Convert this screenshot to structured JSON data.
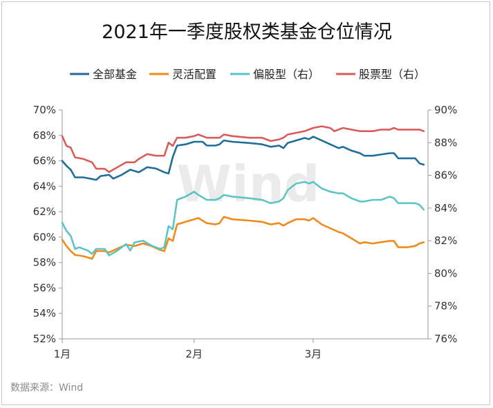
{
  "chart_data": {
    "type": "line",
    "title": "2021年一季度股权类基金仓位情况",
    "source": "数据来源：Wind",
    "watermark": "Wind",
    "x_ticks": [
      "1月",
      "2月",
      "3月"
    ],
    "y_left": {
      "ylim": [
        52,
        70
      ],
      "ticks": [
        "52%",
        "54%",
        "56%",
        "58%",
        "60%",
        "62%",
        "64%",
        "66%",
        "68%",
        "70%"
      ]
    },
    "y_right": {
      "ylim": [
        76,
        90
      ],
      "ticks": [
        "76%",
        "78%",
        "80%",
        "82%",
        "84%",
        "86%",
        "88%",
        "90%"
      ]
    },
    "legend_position": "top",
    "grid": false,
    "x_day_start": 1,
    "x_day_end": 87,
    "series": [
      {
        "name": "全部基金",
        "axis": "left",
        "color": "#1f6e9a",
        "points": [
          [
            1,
            66.0
          ],
          [
            2,
            65.6
          ],
          [
            3,
            65.3
          ],
          [
            4,
            64.7
          ],
          [
            6,
            64.7
          ],
          [
            9,
            64.5
          ],
          [
            10,
            64.8
          ],
          [
            12,
            64.9
          ],
          [
            13,
            64.6
          ],
          [
            15,
            64.9
          ],
          [
            17,
            65.3
          ],
          [
            19,
            65.1
          ],
          [
            21,
            65.5
          ],
          [
            23,
            65.4
          ],
          [
            25,
            65.1
          ],
          [
            26,
            65.0
          ],
          [
            27,
            66.3
          ],
          [
            28,
            67.2
          ],
          [
            30,
            67.3
          ],
          [
            32,
            67.5
          ],
          [
            34,
            67.5
          ],
          [
            35,
            67.2
          ],
          [
            37,
            67.2
          ],
          [
            38,
            67.3
          ],
          [
            39,
            67.6
          ],
          [
            41,
            67.5
          ],
          [
            45,
            67.4
          ],
          [
            48,
            67.3
          ],
          [
            50,
            67.1
          ],
          [
            52,
            67.2
          ],
          [
            53,
            67.0
          ],
          [
            54,
            67.4
          ],
          [
            56,
            67.6
          ],
          [
            58,
            67.8
          ],
          [
            59,
            67.7
          ],
          [
            60,
            67.9
          ],
          [
            62,
            67.6
          ],
          [
            64,
            67.3
          ],
          [
            66,
            67.0
          ],
          [
            67,
            67.1
          ],
          [
            69,
            66.8
          ],
          [
            71,
            66.6
          ],
          [
            72,
            66.4
          ],
          [
            74,
            66.4
          ],
          [
            76,
            66.5
          ],
          [
            78,
            66.6
          ],
          [
            79,
            66.6
          ],
          [
            80,
            66.2
          ],
          [
            82,
            66.2
          ],
          [
            84,
            66.2
          ],
          [
            85,
            65.8
          ],
          [
            86,
            65.7
          ]
        ]
      },
      {
        "name": "灵活配置",
        "axis": "left",
        "color": "#ef8a1a",
        "points": [
          [
            1,
            59.8
          ],
          [
            2,
            59.3
          ],
          [
            3,
            58.9
          ],
          [
            4,
            58.6
          ],
          [
            6,
            58.5
          ],
          [
            8,
            58.3
          ],
          [
            9,
            58.9
          ],
          [
            11,
            58.9
          ],
          [
            12,
            58.8
          ],
          [
            14,
            59.1
          ],
          [
            16,
            59.4
          ],
          [
            18,
            59.3
          ],
          [
            20,
            59.5
          ],
          [
            22,
            59.3
          ],
          [
            24,
            59.0
          ],
          [
            25,
            58.9
          ],
          [
            26,
            59.9
          ],
          [
            27,
            59.7
          ],
          [
            28,
            61.0
          ],
          [
            30,
            61.2
          ],
          [
            32,
            61.4
          ],
          [
            33,
            61.5
          ],
          [
            35,
            61.1
          ],
          [
            37,
            61.0
          ],
          [
            38,
            61.1
          ],
          [
            39,
            61.6
          ],
          [
            41,
            61.4
          ],
          [
            45,
            61.3
          ],
          [
            48,
            61.2
          ],
          [
            50,
            61.0
          ],
          [
            52,
            61.1
          ],
          [
            53,
            60.9
          ],
          [
            54,
            61.1
          ],
          [
            56,
            61.4
          ],
          [
            58,
            61.4
          ],
          [
            59,
            61.3
          ],
          [
            60,
            61.5
          ],
          [
            62,
            61.0
          ],
          [
            64,
            60.7
          ],
          [
            66,
            60.4
          ],
          [
            67,
            60.3
          ],
          [
            69,
            59.9
          ],
          [
            71,
            59.5
          ],
          [
            72,
            59.6
          ],
          [
            74,
            59.5
          ],
          [
            76,
            59.6
          ],
          [
            78,
            59.7
          ],
          [
            79,
            59.7
          ],
          [
            80,
            59.2
          ],
          [
            82,
            59.2
          ],
          [
            84,
            59.3
          ],
          [
            85,
            59.5
          ],
          [
            86,
            59.6
          ]
        ]
      },
      {
        "name": "偏股型（右）",
        "axis": "right",
        "color": "#5cc4c4",
        "points": [
          [
            1,
            83.1
          ],
          [
            2,
            82.6
          ],
          [
            3,
            82.3
          ],
          [
            4,
            81.5
          ],
          [
            5,
            81.6
          ],
          [
            7,
            81.4
          ],
          [
            8,
            81.2
          ],
          [
            9,
            81.5
          ],
          [
            11,
            81.5
          ],
          [
            12,
            81.1
          ],
          [
            14,
            81.4
          ],
          [
            16,
            81.8
          ],
          [
            17,
            81.4
          ],
          [
            18,
            81.9
          ],
          [
            20,
            82.0
          ],
          [
            22,
            81.7
          ],
          [
            24,
            81.5
          ],
          [
            25,
            81.6
          ],
          [
            26,
            82.9
          ],
          [
            27,
            82.7
          ],
          [
            28,
            84.5
          ],
          [
            30,
            84.7
          ],
          [
            32,
            85.0
          ],
          [
            33,
            84.8
          ],
          [
            35,
            84.5
          ],
          [
            37,
            84.5
          ],
          [
            38,
            84.6
          ],
          [
            39,
            84.8
          ],
          [
            41,
            84.7
          ],
          [
            45,
            84.6
          ],
          [
            48,
            84.5
          ],
          [
            50,
            84.3
          ],
          [
            52,
            84.4
          ],
          [
            53,
            84.6
          ],
          [
            54,
            85.1
          ],
          [
            56,
            85.5
          ],
          [
            58,
            85.6
          ],
          [
            59,
            85.5
          ],
          [
            60,
            85.6
          ],
          [
            62,
            85.2
          ],
          [
            64,
            85.0
          ],
          [
            66,
            84.9
          ],
          [
            67,
            84.9
          ],
          [
            69,
            84.6
          ],
          [
            71,
            84.4
          ],
          [
            72,
            84.4
          ],
          [
            74,
            84.5
          ],
          [
            76,
            84.5
          ],
          [
            78,
            84.7
          ],
          [
            79,
            84.6
          ],
          [
            80,
            84.3
          ],
          [
            82,
            84.3
          ],
          [
            84,
            84.3
          ],
          [
            85,
            84.2
          ],
          [
            86,
            83.9
          ]
        ]
      },
      {
        "name": "股票型（右）",
        "axis": "right",
        "color": "#d95b5b",
        "points": [
          [
            1,
            88.4
          ],
          [
            2,
            87.8
          ],
          [
            3,
            87.7
          ],
          [
            4,
            87.1
          ],
          [
            6,
            87.0
          ],
          [
            8,
            86.8
          ],
          [
            9,
            86.4
          ],
          [
            11,
            86.4
          ],
          [
            12,
            86.2
          ],
          [
            14,
            86.5
          ],
          [
            16,
            86.8
          ],
          [
            18,
            86.8
          ],
          [
            19,
            87.0
          ],
          [
            21,
            87.3
          ],
          [
            23,
            87.2
          ],
          [
            25,
            87.2
          ],
          [
            26,
            88.0
          ],
          [
            27,
            87.8
          ],
          [
            28,
            88.3
          ],
          [
            30,
            88.3
          ],
          [
            32,
            88.4
          ],
          [
            33,
            88.5
          ],
          [
            35,
            88.3
          ],
          [
            37,
            88.3
          ],
          [
            38,
            88.3
          ],
          [
            39,
            88.5
          ],
          [
            41,
            88.4
          ],
          [
            45,
            88.3
          ],
          [
            48,
            88.3
          ],
          [
            50,
            88.1
          ],
          [
            52,
            88.2
          ],
          [
            53,
            88.3
          ],
          [
            54,
            88.5
          ],
          [
            56,
            88.6
          ],
          [
            58,
            88.7
          ],
          [
            59,
            88.8
          ],
          [
            60,
            88.9
          ],
          [
            62,
            89.0
          ],
          [
            64,
            88.9
          ],
          [
            65,
            88.7
          ],
          [
            66,
            88.8
          ],
          [
            67,
            88.9
          ],
          [
            69,
            88.8
          ],
          [
            71,
            88.7
          ],
          [
            72,
            88.7
          ],
          [
            74,
            88.7
          ],
          [
            76,
            88.8
          ],
          [
            78,
            88.8
          ],
          [
            79,
            88.9
          ],
          [
            80,
            88.8
          ],
          [
            82,
            88.8
          ],
          [
            84,
            88.8
          ],
          [
            85,
            88.8
          ],
          [
            86,
            88.7
          ]
        ]
      }
    ]
  }
}
